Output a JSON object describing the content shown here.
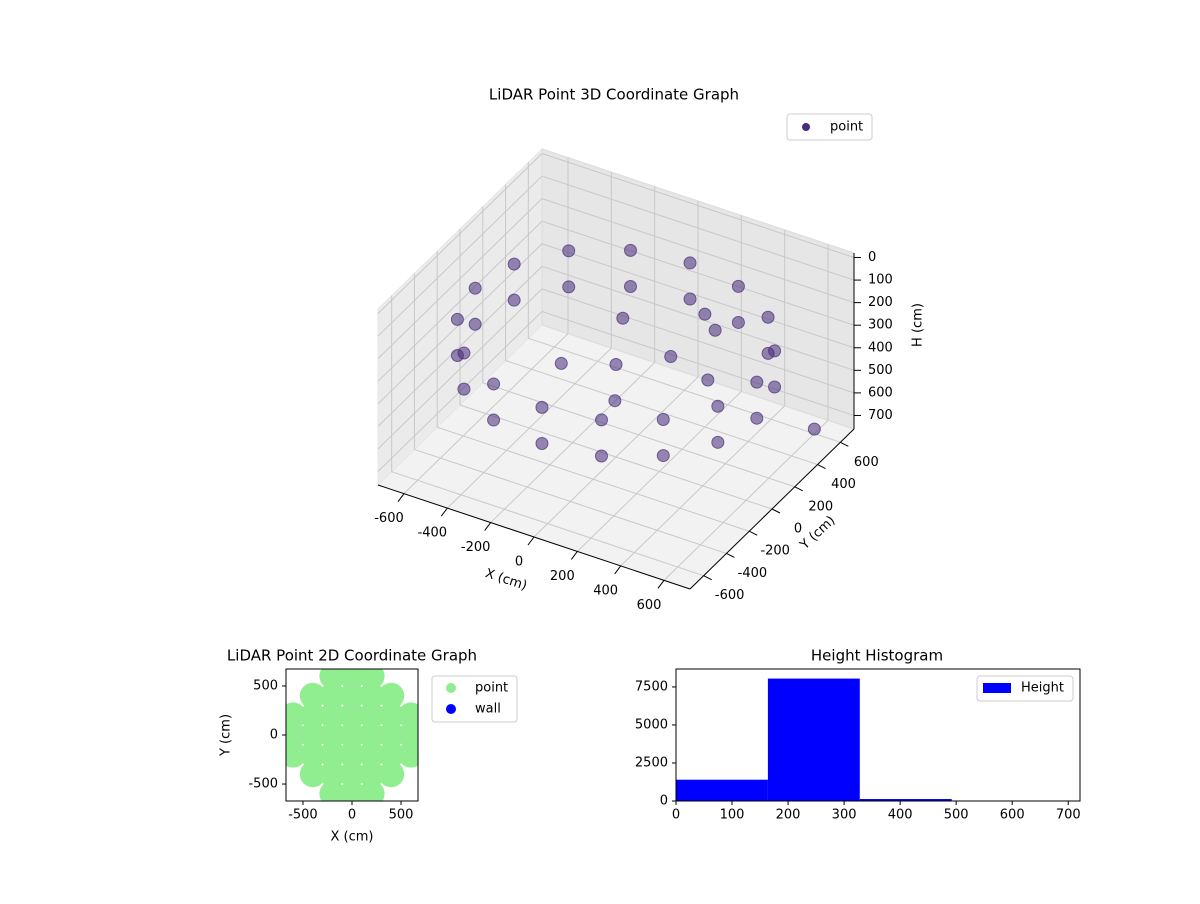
{
  "chart_data": [
    {
      "type": "scatter3d",
      "title": "LiDAR Point 3D Coordinate Graph",
      "xlabel": "X (cm)",
      "ylabel": "Y (cm)",
      "zlabel": "H (cm)",
      "xlim": [
        -720,
        720
      ],
      "ylim": [
        -720,
        720
      ],
      "zlim": [
        760,
        -20
      ],
      "xticks": [
        -600,
        -400,
        -200,
        0,
        200,
        400,
        600
      ],
      "yticks": [
        -600,
        -400,
        -200,
        0,
        200,
        400,
        600
      ],
      "zticks": [
        0,
        100,
        200,
        300,
        400,
        500,
        600,
        700
      ],
      "grid": true,
      "legend": "upper right",
      "series": [
        {
          "name": "point",
          "color": "#472c7a",
          "x": [
            650,
            601,
            460,
            249,
            0,
            -249,
            -460,
            -601,
            -650,
            -601,
            -460,
            -249,
            0,
            249,
            460,
            601,
            650,
            601,
            460,
            249,
            0,
            -249,
            -460,
            -601,
            -650,
            -601,
            -460,
            -249,
            0,
            249,
            460,
            601,
            0,
            200,
            -200,
            100,
            300,
            -100,
            450,
            200,
            600
          ],
          "y": [
            0,
            249,
            460,
            601,
            650,
            601,
            460,
            249,
            0,
            -249,
            -460,
            -601,
            -650,
            -601,
            -460,
            -249,
            0,
            249,
            460,
            601,
            650,
            601,
            460,
            249,
            0,
            -249,
            -460,
            -601,
            -650,
            -601,
            -460,
            -249,
            0,
            100,
            -100,
            -200,
            300,
            250,
            -50,
            400,
            600
          ],
          "z": [
            220,
            220,
            220,
            220,
            220,
            220,
            220,
            220,
            220,
            220,
            220,
            220,
            220,
            220,
            220,
            220,
            380,
            380,
            380,
            380,
            380,
            380,
            380,
            380,
            380,
            380,
            380,
            380,
            380,
            380,
            380,
            380,
            350,
            300,
            360,
            380,
            250,
            300,
            250,
            260,
            740
          ]
        }
      ]
    },
    {
      "type": "scatter",
      "title": "LiDAR Point 2D Coordinate Graph",
      "xlabel": "X (cm)",
      "ylabel": "Y (cm)",
      "xlim": [
        -673,
        673
      ],
      "ylim": [
        -673,
        673
      ],
      "xticks": [
        -500,
        0,
        500
      ],
      "yticks": [
        -500,
        0,
        500
      ],
      "legend": "outside right",
      "series": [
        {
          "name": "point",
          "color": "#90ee90",
          "x": [
            -600,
            -400,
            -200,
            0,
            200,
            400,
            600,
            -600,
            -400,
            -200,
            0,
            200,
            400,
            600,
            -600,
            -400,
            -200,
            0,
            200,
            400,
            600,
            -400,
            -200,
            0,
            200,
            400,
            -400,
            -200,
            0,
            200,
            400,
            -200,
            0,
            200,
            -200,
            0,
            200
          ],
          "y": [
            0,
            0,
            0,
            0,
            0,
            0,
            0,
            200,
            200,
            200,
            200,
            200,
            200,
            200,
            -200,
            -200,
            -200,
            -200,
            -200,
            -200,
            -200,
            400,
            400,
            400,
            400,
            400,
            -400,
            -400,
            -400,
            -400,
            -400,
            600,
            600,
            600,
            -600,
            -600,
            -600
          ]
        },
        {
          "name": "wall",
          "color": "#0000ff",
          "x": [],
          "y": []
        }
      ]
    },
    {
      "type": "histogram",
      "title": "Height Histogram",
      "xlim": [
        0,
        721
      ],
      "ylim": [
        0,
        8680
      ],
      "xticks": [
        0,
        100,
        200,
        300,
        400,
        500,
        600,
        700
      ],
      "yticks": [
        0,
        2500,
        5000,
        7500
      ],
      "legend": "upper right",
      "series": [
        {
          "name": "Height",
          "color": "#0000ff",
          "bins": [
            0,
            164,
            328,
            492,
            656
          ],
          "values": [
            1400,
            8050,
            130,
            15
          ]
        }
      ]
    }
  ]
}
